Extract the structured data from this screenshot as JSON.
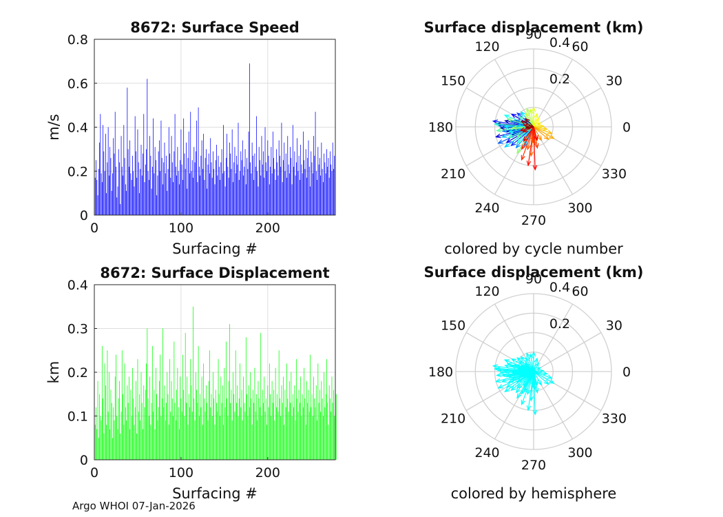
{
  "footer": "Argo WHOI 07-Jan-2026",
  "chart_data": [
    {
      "type": "bar",
      "title": "8672: Surface Speed",
      "xlabel": "Surfacing #",
      "ylabel": "m/s",
      "xlim": [
        0,
        278
      ],
      "ylim": [
        0,
        0.8
      ],
      "xticks": [
        "0",
        "100",
        "200"
      ],
      "yticks": [
        "0",
        "0.2",
        "0.4",
        "0.6",
        "0.8"
      ],
      "grid": true,
      "color": "#0000ff",
      "x": "1..278 surfacing index",
      "values": [
        0.17,
        0.25,
        0.16,
        0.09,
        0.21,
        0.33,
        0.46,
        0.19,
        0.15,
        0.41,
        0.29,
        0.2,
        0.37,
        0.1,
        0.24,
        0.4,
        0.18,
        0.31,
        0.26,
        0.11,
        0.19,
        0.35,
        0.28,
        0.47,
        0.22,
        0.08,
        0.13,
        0.3,
        0.24,
        0.05,
        0.36,
        0.22,
        0.18,
        0.41,
        0.26,
        0.14,
        0.11,
        0.58,
        0.3,
        0.22,
        0.34,
        0.19,
        0.16,
        0.27,
        0.2,
        0.13,
        0.45,
        0.29,
        0.17,
        0.39,
        0.24,
        0.1,
        0.21,
        0.32,
        0.18,
        0.28,
        0.46,
        0.15,
        0.23,
        0.3,
        0.62,
        0.2,
        0.16,
        0.36,
        0.27,
        0.12,
        0.22,
        0.44,
        0.19,
        0.31,
        0.25,
        0.09,
        0.18,
        0.29,
        0.34,
        0.2,
        0.43,
        0.26,
        0.14,
        0.24,
        0.33,
        0.19,
        0.27,
        0.11,
        0.21,
        0.4,
        0.28,
        0.17,
        0.36,
        0.24,
        0.15,
        0.29,
        0.46,
        0.22,
        0.18,
        0.31,
        0.2,
        0.14,
        0.25,
        0.39,
        0.23,
        0.16,
        0.44,
        0.28,
        0.21,
        0.33,
        0.12,
        0.26,
        0.38,
        0.19,
        0.47,
        0.2,
        0.25,
        0.17,
        0.31,
        0.24,
        0.29,
        0.43,
        0.15,
        0.49,
        0.22,
        0.18,
        0.27,
        0.34,
        0.21,
        0.37,
        0.16,
        0.26,
        0.3,
        0.12,
        0.23,
        0.28,
        0.19,
        0.35,
        0.24,
        0.17,
        0.29,
        0.21,
        0.14,
        0.25,
        0.32,
        0.18,
        0.27,
        0.22,
        0.16,
        0.24,
        0.3,
        0.19,
        0.41,
        0.2,
        0.13,
        0.26,
        0.37,
        0.22,
        0.17,
        0.33,
        0.28,
        0.21,
        0.39,
        0.15,
        0.24,
        0.31,
        0.19,
        0.27,
        0.23,
        0.42,
        0.16,
        0.2,
        0.29,
        0.25,
        0.34,
        0.18,
        0.22,
        0.3,
        0.14,
        0.26,
        0.21,
        0.38,
        0.69,
        0.24,
        0.19,
        0.33,
        0.27,
        0.16,
        0.28,
        0.22,
        0.45,
        0.2,
        0.13,
        0.31,
        0.25,
        0.18,
        0.36,
        0.23,
        0.29,
        0.17,
        0.4,
        0.24,
        0.2,
        0.34,
        0.27,
        0.14,
        0.22,
        0.31,
        0.19,
        0.38,
        0.26,
        0.21,
        0.16,
        0.3,
        0.24,
        0.18,
        0.34,
        0.27,
        0.22,
        0.42,
        0.15,
        0.25,
        0.33,
        0.2,
        0.28,
        0.17,
        0.36,
        0.23,
        0.19,
        0.31,
        0.26,
        0.14,
        0.41,
        0.22,
        0.29,
        0.18,
        0.24,
        0.35,
        0.2,
        0.27,
        0.16,
        0.32,
        0.23,
        0.19,
        0.38,
        0.25,
        0.21,
        0.3,
        0.17,
        0.26,
        0.34,
        0.22,
        0.13,
        0.29,
        0.24,
        0.19,
        0.36,
        0.27,
        0.47,
        0.2,
        0.16,
        0.31,
        0.23,
        0.26,
        0.18,
        0.33,
        0.21,
        0.15,
        0.28,
        0.24,
        0.19,
        0.3,
        0.22,
        0.26,
        0.17,
        0.29,
        0.23,
        0.2,
        0.33,
        0.21,
        0.27
      ]
    },
    {
      "type": "bar",
      "title": "8672: Surface Displacement",
      "xlabel": "Surfacing #",
      "ylabel": "km",
      "xlim": [
        0,
        278
      ],
      "ylim": [
        0,
        0.4
      ],
      "xticks": [
        "0",
        "100",
        "200"
      ],
      "yticks": [
        "0",
        "0.1",
        "0.2",
        "0.3",
        "0.4"
      ],
      "grid": true,
      "color": "#00ff00",
      "x": "1..278 surfacing index",
      "values": [
        0.08,
        0.12,
        0.07,
        0.18,
        0.05,
        0.15,
        0.1,
        0.09,
        0.26,
        0.14,
        0.06,
        0.22,
        0.17,
        0.08,
        0.25,
        0.11,
        0.2,
        0.07,
        0.16,
        0.13,
        0.05,
        0.12,
        0.09,
        0.19,
        0.24,
        0.1,
        0.07,
        0.14,
        0.18,
        0.06,
        0.11,
        0.25,
        0.15,
        0.08,
        0.22,
        0.12,
        0.09,
        0.17,
        0.13,
        0.19,
        0.07,
        0.16,
        0.1,
        0.21,
        0.14,
        0.08,
        0.12,
        0.18,
        0.06,
        0.23,
        0.11,
        0.15,
        0.09,
        0.2,
        0.13,
        0.07,
        0.17,
        0.12,
        0.16,
        0.22,
        0.3,
        0.14,
        0.1,
        0.19,
        0.08,
        0.13,
        0.26,
        0.11,
        0.16,
        0.07,
        0.21,
        0.15,
        0.09,
        0.12,
        0.18,
        0.24,
        0.1,
        0.14,
        0.3,
        0.12,
        0.17,
        0.09,
        0.13,
        0.2,
        0.15,
        0.08,
        0.23,
        0.11,
        0.18,
        0.14,
        0.1,
        0.27,
        0.13,
        0.09,
        0.16,
        0.21,
        0.12,
        0.07,
        0.19,
        0.14,
        0.11,
        0.24,
        0.16,
        0.1,
        0.29,
        0.13,
        0.19,
        0.08,
        0.15,
        0.12,
        0.23,
        0.17,
        0.11,
        0.35,
        0.14,
        0.09,
        0.2,
        0.16,
        0.13,
        0.26,
        0.1,
        0.15,
        0.12,
        0.19,
        0.08,
        0.22,
        0.14,
        0.11,
        0.17,
        0.13,
        0.09,
        0.18,
        0.25,
        0.12,
        0.15,
        0.1,
        0.2,
        0.14,
        0.08,
        0.16,
        0.13,
        0.11,
        0.23,
        0.15,
        0.1,
        0.19,
        0.13,
        0.17,
        0.08,
        0.21,
        0.12,
        0.27,
        0.14,
        0.1,
        0.18,
        0.31,
        0.13,
        0.16,
        0.09,
        0.2,
        0.15,
        0.11,
        0.25,
        0.13,
        0.17,
        0.1,
        0.14,
        0.22,
        0.12,
        0.16,
        0.09,
        0.19,
        0.13,
        0.11,
        0.28,
        0.15,
        0.1,
        0.17,
        0.12,
        0.2,
        0.14,
        0.08,
        0.16,
        0.13,
        0.21,
        0.11,
        0.15,
        0.09,
        0.18,
        0.14,
        0.12,
        0.29,
        0.1,
        0.16,
        0.13,
        0.19,
        0.11,
        0.14,
        0.08,
        0.17,
        0.12,
        0.22,
        0.15,
        0.1,
        0.18,
        0.13,
        0.16,
        0.09,
        0.21,
        0.12,
        0.15,
        0.11,
        0.25,
        0.14,
        0.1,
        0.17,
        0.13,
        0.19,
        0.08,
        0.16,
        0.12,
        0.22,
        0.14,
        0.11,
        0.18,
        0.13,
        0.2,
        0.1,
        0.15,
        0.12,
        0.17,
        0.09,
        0.23,
        0.14,
        0.11,
        0.16,
        0.13,
        0.19,
        0.1,
        0.15,
        0.12,
        0.21,
        0.14,
        0.08,
        0.18,
        0.13,
        0.16,
        0.11,
        0.24,
        0.12,
        0.15,
        0.1,
        0.19,
        0.14,
        0.12,
        0.17,
        0.09,
        0.22,
        0.13,
        0.16,
        0.11,
        0.18,
        0.14,
        0.1,
        0.2,
        0.12,
        0.15,
        0.23,
        0.13,
        0.08,
        0.17,
        0.14,
        0.11,
        0.19,
        0.13,
        0.16,
        0.1,
        0.24,
        0.15
      ]
    },
    {
      "type": "polar",
      "title": "Surface displacement (km)",
      "caption": "colored by cycle number",
      "rlim": [
        0,
        0.4
      ],
      "rticks": [
        "0.2",
        "0.4"
      ],
      "thetaticks": [
        "0",
        "30",
        "60",
        "90",
        "120",
        "150",
        "180",
        "210",
        "240",
        "270",
        "300",
        "330"
      ],
      "grid": true,
      "color_mode": "cycle number (jet colormap)",
      "vectors_deg_km": [
        [
          175,
          0.19
        ],
        [
          182,
          0.17
        ],
        [
          190,
          0.14
        ],
        [
          168,
          0.15
        ],
        [
          200,
          0.12
        ],
        [
          160,
          0.1
        ],
        [
          195,
          0.2
        ],
        [
          210,
          0.16
        ],
        [
          150,
          0.13
        ],
        [
          172,
          0.21
        ],
        [
          185,
          0.09
        ],
        [
          220,
          0.15
        ],
        [
          140,
          0.11
        ],
        [
          178,
          0.18
        ],
        [
          205,
          0.2
        ],
        [
          188,
          0.16
        ],
        [
          165,
          0.12
        ],
        [
          230,
          0.14
        ],
        [
          245,
          0.11
        ],
        [
          170,
          0.08
        ],
        [
          198,
          0.17
        ],
        [
          215,
          0.18
        ],
        [
          130,
          0.1
        ],
        [
          180,
          0.15
        ],
        [
          192,
          0.13
        ],
        [
          158,
          0.16
        ],
        [
          225,
          0.12
        ],
        [
          176,
          0.2
        ],
        [
          203,
          0.14
        ],
        [
          145,
          0.09
        ],
        [
          186,
          0.19
        ],
        [
          212,
          0.1
        ],
        [
          163,
          0.14
        ],
        [
          238,
          0.16
        ],
        [
          183,
          0.11
        ],
        [
          110,
          0.1
        ],
        [
          120,
          0.08
        ],
        [
          100,
          0.09
        ],
        [
          90,
          0.1
        ],
        [
          75,
          0.07
        ],
        [
          60,
          0.05
        ],
        [
          30,
          0.04
        ],
        [
          5,
          0.05
        ],
        [
          350,
          0.07
        ],
        [
          340,
          0.1
        ],
        [
          330,
          0.12
        ],
        [
          320,
          0.1
        ],
        [
          300,
          0.08
        ],
        [
          275,
          0.09
        ],
        [
          265,
          0.15
        ],
        [
          255,
          0.12
        ],
        [
          268,
          0.08
        ],
        [
          280,
          0.11
        ],
        [
          250,
          0.18
        ],
        [
          242,
          0.13
        ],
        [
          262,
          0.2
        ],
        [
          272,
          0.22
        ],
        [
          285,
          0.07
        ],
        [
          235,
          0.09
        ],
        [
          195,
          0.07
        ],
        [
          205,
          0.06
        ],
        [
          170,
          0.05
        ],
        [
          155,
          0.07
        ],
        [
          135,
          0.06
        ],
        [
          185,
          0.04
        ]
      ]
    },
    {
      "type": "polar",
      "title": "Surface displacement (km)",
      "caption": "colored by hemisphere",
      "rlim": [
        0,
        0.4
      ],
      "rticks": [
        "0.2",
        "0.4"
      ],
      "thetaticks": [
        "0",
        "30",
        "60",
        "90",
        "120",
        "150",
        "180",
        "210",
        "240",
        "270",
        "300",
        "330"
      ],
      "grid": true,
      "color": "#00ffff",
      "vectors_deg_km": [
        [
          175,
          0.19
        ],
        [
          182,
          0.17
        ],
        [
          190,
          0.14
        ],
        [
          168,
          0.15
        ],
        [
          200,
          0.12
        ],
        [
          160,
          0.1
        ],
        [
          195,
          0.2
        ],
        [
          210,
          0.16
        ],
        [
          150,
          0.13
        ],
        [
          172,
          0.21
        ],
        [
          185,
          0.09
        ],
        [
          220,
          0.15
        ],
        [
          140,
          0.11
        ],
        [
          178,
          0.18
        ],
        [
          205,
          0.2
        ],
        [
          188,
          0.16
        ],
        [
          165,
          0.12
        ],
        [
          230,
          0.14
        ],
        [
          245,
          0.11
        ],
        [
          170,
          0.08
        ],
        [
          198,
          0.17
        ],
        [
          215,
          0.18
        ],
        [
          130,
          0.1
        ],
        [
          180,
          0.15
        ],
        [
          192,
          0.13
        ],
        [
          158,
          0.16
        ],
        [
          225,
          0.12
        ],
        [
          176,
          0.2
        ],
        [
          203,
          0.14
        ],
        [
          145,
          0.09
        ],
        [
          186,
          0.19
        ],
        [
          212,
          0.1
        ],
        [
          163,
          0.14
        ],
        [
          238,
          0.16
        ],
        [
          183,
          0.11
        ],
        [
          110,
          0.1
        ],
        [
          120,
          0.08
        ],
        [
          100,
          0.09
        ],
        [
          90,
          0.1
        ],
        [
          75,
          0.07
        ],
        [
          60,
          0.05
        ],
        [
          30,
          0.04
        ],
        [
          5,
          0.05
        ],
        [
          350,
          0.07
        ],
        [
          340,
          0.1
        ],
        [
          330,
          0.12
        ],
        [
          320,
          0.1
        ],
        [
          300,
          0.08
        ],
        [
          275,
          0.09
        ],
        [
          265,
          0.15
        ],
        [
          255,
          0.12
        ],
        [
          268,
          0.08
        ],
        [
          280,
          0.11
        ],
        [
          250,
          0.18
        ],
        [
          242,
          0.13
        ],
        [
          262,
          0.2
        ],
        [
          272,
          0.22
        ],
        [
          285,
          0.07
        ],
        [
          235,
          0.09
        ],
        [
          195,
          0.07
        ],
        [
          205,
          0.06
        ],
        [
          170,
          0.05
        ],
        [
          155,
          0.07
        ],
        [
          135,
          0.06
        ],
        [
          185,
          0.04
        ]
      ]
    }
  ]
}
